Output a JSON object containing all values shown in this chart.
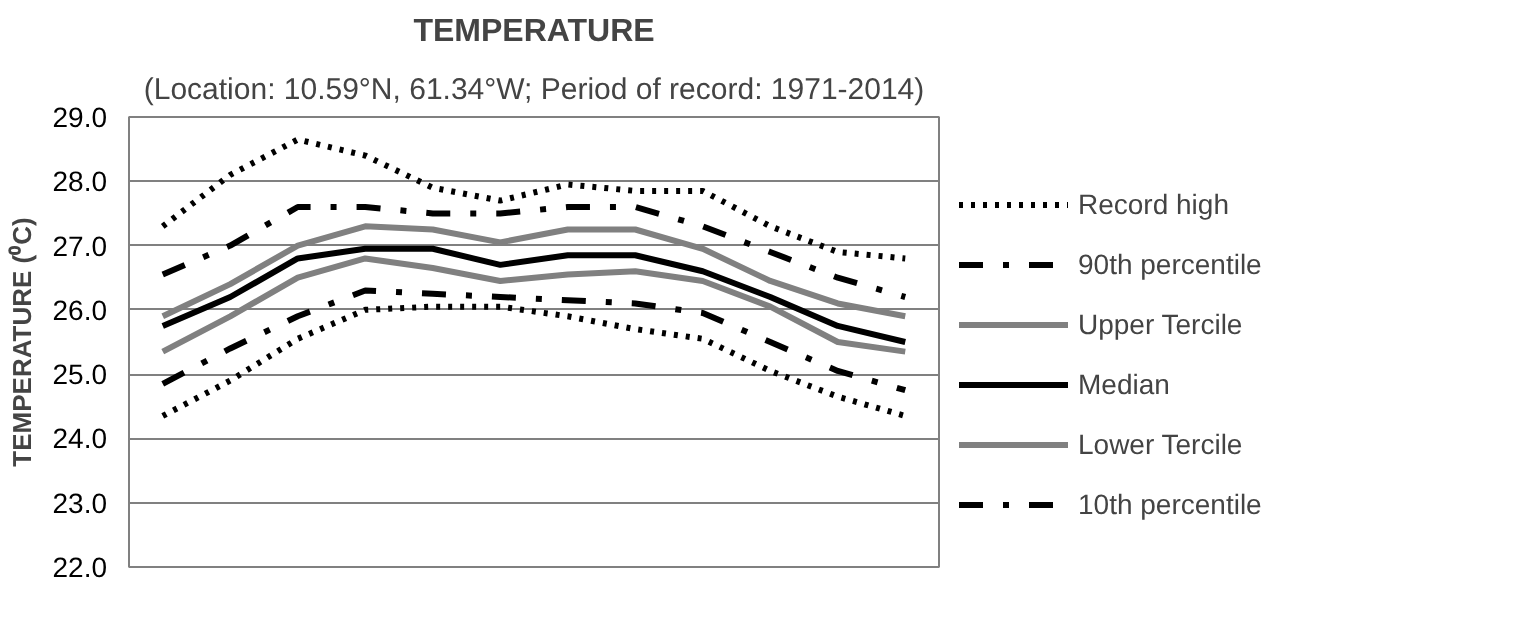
{
  "chart_data": {
    "type": "line",
    "title": "TEMPERATURE",
    "subtitle": "(Location: 10.59°N, 61.34°W; Period of record: 1971-2014)",
    "ylabel": "TEMPERATURE (⁰C)",
    "categories": [
      null,
      null,
      null,
      null,
      null,
      null,
      null,
      null,
      null,
      null,
      null,
      null
    ],
    "ylim": [
      22,
      29
    ],
    "yticks": [
      {
        "value": 22,
        "label": "22.0"
      },
      {
        "value": 23,
        "label": "23.0"
      },
      {
        "value": 24,
        "label": "24.0"
      },
      {
        "value": 25,
        "label": "25.0"
      },
      {
        "value": 26,
        "label": "26.0"
      },
      {
        "value": 27,
        "label": "27.0"
      },
      {
        "value": 28,
        "label": "28.0"
      },
      {
        "value": 29,
        "label": "29.0"
      }
    ],
    "grid": "y",
    "legend": "right",
    "tick_labels": "y",
    "series": [
      {
        "name": "Record high",
        "color": "#000000",
        "line_style": "dotted",
        "values": [
          27.3,
          28.1,
          28.65,
          28.4,
          27.9,
          27.7,
          27.95,
          27.85,
          27.85,
          27.3,
          26.9,
          26.8
        ]
      },
      {
        "name": "90th percentile",
        "color": "#000000",
        "line_style": "dashdot",
        "values": [
          26.55,
          27.0,
          27.6,
          27.6,
          27.5,
          27.5,
          27.6,
          27.6,
          27.3,
          26.9,
          26.5,
          26.2
        ]
      },
      {
        "name": "Upper Tercile",
        "color": "#808080",
        "line_style": "solid",
        "values": [
          25.9,
          26.4,
          27.0,
          27.3,
          27.25,
          27.05,
          27.25,
          27.25,
          26.95,
          26.45,
          26.1,
          25.9
        ]
      },
      {
        "name": "Median",
        "color": "#000000",
        "line_style": "solid",
        "values": [
          25.75,
          26.2,
          26.8,
          26.95,
          26.95,
          26.7,
          26.85,
          26.85,
          26.6,
          26.2,
          25.75,
          25.5
        ]
      },
      {
        "name": "Lower Tercile",
        "color": "#808080",
        "line_style": "solid",
        "values": [
          25.35,
          25.9,
          26.5,
          26.8,
          26.65,
          26.45,
          26.55,
          26.6,
          26.45,
          26.05,
          25.5,
          25.35
        ]
      },
      {
        "name": "10th percentile",
        "color": "#000000",
        "line_style": "dashdot",
        "values": [
          24.85,
          25.4,
          25.9,
          26.3,
          26.25,
          26.2,
          26.15,
          26.1,
          25.95,
          25.5,
          25.05,
          24.75
        ]
      },
      {
        "color": "#000000",
        "line_style": "dotted",
        "values": [
          24.35,
          24.9,
          25.55,
          26.0,
          26.05,
          26.05,
          25.9,
          25.7,
          25.55,
          25.05,
          24.65,
          24.35
        ]
      }
    ]
  }
}
